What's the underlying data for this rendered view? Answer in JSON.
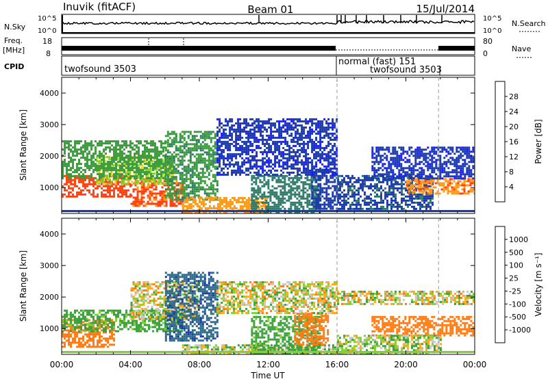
{
  "header": {
    "station": "Inuvik (fitACF)",
    "beam": "Beam 01",
    "date": "15/Jul/2014"
  },
  "status_panels": {
    "nsky_label": "N.Sky",
    "nsky_ticks": [
      "10^5",
      "10^0"
    ],
    "nsearch_label": "N.Search",
    "nsearch_ticks": [
      "10^5",
      "10^0"
    ],
    "freq_label": "Freq.",
    "freq_unit": "[MHz]",
    "freq_ticks": [
      "18",
      "8"
    ],
    "nave_label": "Nave",
    "nave_ticks": [
      "80",
      "0"
    ],
    "cpid_label": "CPID",
    "cpid_segments": [
      {
        "name": "twofsound 3503",
        "start_h": 0,
        "end_h": 16
      },
      {
        "name": "normal (fast) 151",
        "start_h": 16,
        "end_h": 21.9
      },
      {
        "name": "twofsound 3503",
        "start_h": 16,
        "end_h": 24
      }
    ]
  },
  "chart_data": [
    {
      "type": "heatmap",
      "title": "",
      "xlabel": "Time UT",
      "ylabel": "Slant Range [km]",
      "xlim": [
        0,
        24
      ],
      "ylim": [
        180,
        4500
      ],
      "x_ticks": [
        "00:00",
        "04:00",
        "08:00",
        "12:00",
        "16:00",
        "20:00",
        "00:00"
      ],
      "y_ticks": [
        1000,
        2000,
        3000,
        4000
      ],
      "colorbar": {
        "label": "Power [dB]",
        "ticks": [
          "28",
          "24",
          "20",
          "16",
          "12",
          "8",
          "4"
        ],
        "levels": [
          0,
          4,
          8,
          12,
          16,
          20,
          24,
          28,
          32
        ],
        "colors": [
          "#1a1aff",
          "#1a3aa8",
          "#2e7a6a",
          "#3c9c3c",
          "#88cc22",
          "#f0d020",
          "#ff9a1a",
          "#ff4010",
          "#ff0000"
        ]
      },
      "regions": [
        {
          "t0": 0,
          "t1": 4,
          "r0": 700,
          "r1": 1400,
          "value": 30
        },
        {
          "t0": 4,
          "t1": 7,
          "r0": 400,
          "r1": 1300,
          "value": 29
        },
        {
          "t0": 2,
          "t1": 6.5,
          "r0": 1100,
          "r1": 2000,
          "value": 19
        },
        {
          "t0": 0,
          "t1": 6,
          "r0": 1300,
          "r1": 2500,
          "value": 14
        },
        {
          "t0": 6,
          "t1": 9,
          "r0": 600,
          "r1": 2800,
          "value": 13
        },
        {
          "t0": 7,
          "t1": 12,
          "r0": 200,
          "r1": 700,
          "value": 26
        },
        {
          "t0": 11,
          "t1": 15,
          "r0": 200,
          "r1": 1400,
          "value": 10
        },
        {
          "t0": 14.5,
          "t1": 16,
          "r0": 300,
          "r1": 1600,
          "value": 6
        },
        {
          "t0": 16,
          "t1": 21.5,
          "r0": 300,
          "r1": 1400,
          "value": 7
        },
        {
          "t0": 20,
          "t1": 24,
          "r0": 800,
          "r1": 1300,
          "value": 27
        },
        {
          "t0": 18,
          "t1": 24,
          "r0": 1300,
          "r1": 2300,
          "value": 5
        },
        {
          "t0": 9,
          "t1": 16,
          "r0": 1400,
          "r1": 3200,
          "value": 5
        }
      ]
    },
    {
      "type": "heatmap",
      "title": "",
      "xlabel": "Time UT",
      "ylabel": "Slant Range [km]",
      "xlim": [
        0,
        24
      ],
      "ylim": [
        180,
        4500
      ],
      "x_ticks": [
        "00:00",
        "04:00",
        "08:00",
        "12:00",
        "16:00",
        "20:00",
        "00:00"
      ],
      "y_ticks": [
        1000,
        2000,
        3000,
        4000
      ],
      "colorbar": {
        "label": "Velocity [m s⁻¹]",
        "ticks": [
          "1000",
          "500",
          "100",
          "25",
          "-25",
          "-100",
          "-500",
          "-1000"
        ],
        "levels": [
          -1200,
          -1000,
          -500,
          -100,
          -25,
          25,
          100,
          500,
          1000,
          1200
        ],
        "colors": [
          "#ff0000",
          "#ff3a10",
          "#ff7a10",
          "#ffaa20",
          "#c8c8c8",
          "#80d030",
          "#3ca03c",
          "#2e6a8a",
          "#1a3aa8"
        ]
      },
      "regions": [
        {
          "t0": 0,
          "t1": 3,
          "r0": 400,
          "r1": 1300,
          "value": -300
        },
        {
          "t0": 0,
          "t1": 7,
          "r0": 900,
          "r1": 1600,
          "value": 200
        },
        {
          "t0": 4,
          "t1": 8,
          "r0": 1300,
          "r1": 2500,
          "value": 0
        },
        {
          "t0": 6,
          "t1": 9,
          "r0": 600,
          "r1": 2800,
          "value": 900
        },
        {
          "t0": 7,
          "t1": 16,
          "r0": 200,
          "r1": 500,
          "value": 50
        },
        {
          "t0": 11,
          "t1": 15,
          "r0": 200,
          "r1": 1400,
          "value": 200
        },
        {
          "t0": 13.5,
          "t1": 15.5,
          "r0": 500,
          "r1": 1500,
          "value": -300
        },
        {
          "t0": 9,
          "t1": 16,
          "r0": 1500,
          "r1": 2500,
          "value": 0
        },
        {
          "t0": 16,
          "t1": 24,
          "r0": 1800,
          "r1": 2200,
          "value": 0
        },
        {
          "t0": 18,
          "t1": 24,
          "r0": 800,
          "r1": 1400,
          "value": -300
        },
        {
          "t0": 16,
          "t1": 22,
          "r0": 200,
          "r1": 800,
          "value": 50
        }
      ]
    }
  ]
}
